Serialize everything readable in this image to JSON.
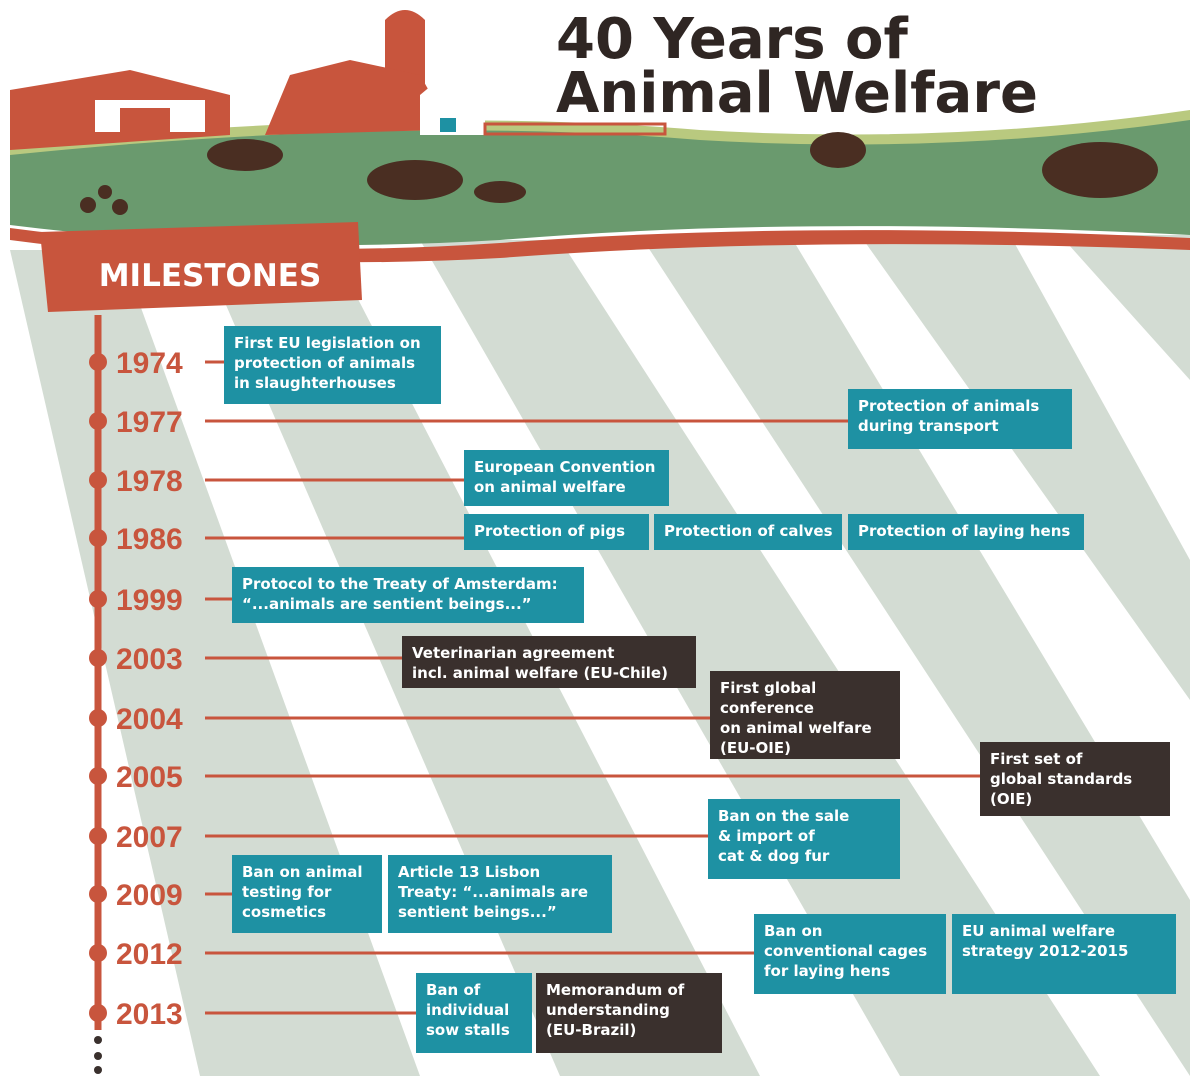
{
  "header": {
    "title": [
      "40 Years of",
      "Animal Welfare"
    ]
  },
  "milestones": {
    "label": "MILESTONES",
    "entries": [
      {
        "year": "1974",
        "items": [
          {
            "lines": [
              "First EU legislation on",
              "protection of animals",
              "in slaughterhouses"
            ],
            "color": "#1e91a3"
          }
        ]
      },
      {
        "year": "1977",
        "items": [
          {
            "lines": [
              "Protection of animals",
              "during transport"
            ],
            "color": "#1e91a3"
          }
        ]
      },
      {
        "year": "1978",
        "items": [
          {
            "lines": [
              "European Convention",
              "on animal welfare"
            ],
            "color": "#1e91a3"
          }
        ]
      },
      {
        "year": "1986",
        "items": [
          {
            "lines": [
              "Protection of pigs"
            ],
            "color": "#1e91a3"
          },
          {
            "lines": [
              "Protection of calves"
            ],
            "color": "#1e91a3"
          },
          {
            "lines": [
              "Protection of laying hens"
            ],
            "color": "#1e91a3"
          }
        ]
      },
      {
        "year": "1999",
        "items": [
          {
            "lines": [
              "Protocol to the Treaty of Amsterdam:",
              "“...animals are sentient beings...”"
            ],
            "color": "#1e91a3"
          }
        ]
      },
      {
        "year": "2003",
        "items": [
          {
            "lines": [
              "Veterinarian agreement",
              "incl. animal welfare (EU-Chile)"
            ],
            "color": "#3a302d"
          }
        ]
      },
      {
        "year": "2004",
        "items": [
          {
            "lines": [
              "First global",
              "conference",
              "on animal welfare",
              "(EU-OIE)"
            ],
            "color": "#3a302d"
          }
        ]
      },
      {
        "year": "2005",
        "items": [
          {
            "lines": [
              "First set of",
              "global standards",
              "(OIE)"
            ],
            "color": "#3a302d"
          }
        ]
      },
      {
        "year": "2007",
        "items": [
          {
            "lines": [
              "Ban on the sale",
              "& import of",
              "cat & dog fur"
            ],
            "color": "#1e91a3"
          }
        ]
      },
      {
        "year": "2009",
        "items": [
          {
            "lines": [
              "Ban on animal",
              "testing for",
              "cosmetics"
            ],
            "color": "#1e91a3"
          },
          {
            "lines": [
              "Article 13 Lisbon",
              "Treaty: “...animals are",
              "sentient beings...”"
            ],
            "color": "#1e91a3"
          }
        ]
      },
      {
        "year": "2012",
        "items": [
          {
            "lines": [
              "Ban on",
              "conventional cages",
              "for laying hens"
            ],
            "color": "#1e91a3"
          },
          {
            "lines": [
              "EU animal welfare",
              "strategy 2012-2015"
            ],
            "color": "#1e91a3"
          }
        ]
      },
      {
        "year": "2013",
        "items": [
          {
            "lines": [
              "Ban of",
              "individual",
              "sow stalls"
            ],
            "color": "#1e91a3"
          },
          {
            "lines": [
              "Memorandum of",
              "understanding",
              "(EU-Brazil)"
            ],
            "color": "#3a302d"
          }
        ]
      }
    ]
  }
}
